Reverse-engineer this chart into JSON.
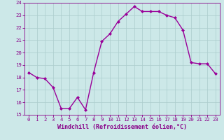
{
  "x": [
    0,
    1,
    2,
    3,
    4,
    5,
    6,
    7,
    8,
    9,
    10,
    11,
    12,
    13,
    14,
    15,
    16,
    17,
    18,
    19,
    20,
    21,
    22,
    23
  ],
  "y": [
    18.4,
    18.0,
    17.9,
    17.2,
    15.5,
    15.5,
    16.4,
    15.4,
    18.4,
    20.9,
    21.5,
    22.5,
    23.1,
    23.7,
    23.3,
    23.3,
    23.3,
    23.0,
    22.8,
    21.8,
    19.2,
    19.1,
    19.1,
    18.3
  ],
  "line_color": "#990099",
  "marker": "D",
  "marker_size": 2.0,
  "bg_color": "#cce8e8",
  "grid_color": "#aacccc",
  "xlabel": "Windchill (Refroidissement éolien,°C)",
  "ylim": [
    15,
    24
  ],
  "xlim": [
    -0.5,
    23.5
  ],
  "yticks": [
    15,
    16,
    17,
    18,
    19,
    20,
    21,
    22,
    23,
    24
  ],
  "xticks": [
    0,
    1,
    2,
    3,
    4,
    5,
    6,
    7,
    8,
    9,
    10,
    11,
    12,
    13,
    14,
    15,
    16,
    17,
    18,
    19,
    20,
    21,
    22,
    23
  ],
  "tick_color": "#880088",
  "label_color": "#880088",
  "tick_fontsize": 5.2,
  "xlabel_fontsize": 6.0,
  "line_width": 1.0
}
